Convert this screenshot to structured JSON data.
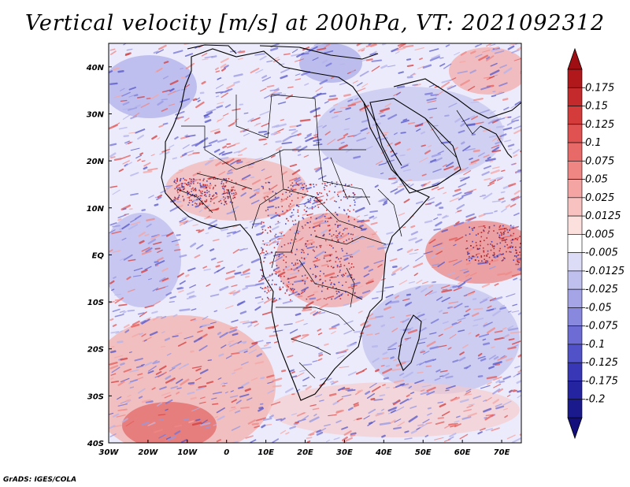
{
  "title": "Vertical velocity [m/s] at 200hPa, VT: 2021092312",
  "credit": "GrADS: IGES/COLA",
  "map": {
    "lon_range": [
      -30,
      75
    ],
    "lat_range": [
      -40,
      45
    ],
    "lon_ticks": [
      {
        "value": -30,
        "label": "30W"
      },
      {
        "value": -20,
        "label": "20W"
      },
      {
        "value": -10,
        "label": "10W"
      },
      {
        "value": 0,
        "label": "0"
      },
      {
        "value": 10,
        "label": "10E"
      },
      {
        "value": 20,
        "label": "20E"
      },
      {
        "value": 30,
        "label": "30E"
      },
      {
        "value": 40,
        "label": "40E"
      },
      {
        "value": 50,
        "label": "50E"
      },
      {
        "value": 60,
        "label": "60E"
      },
      {
        "value": 70,
        "label": "70E"
      }
    ],
    "lat_ticks": [
      {
        "value": 40,
        "label": "40N"
      },
      {
        "value": 30,
        "label": "30N"
      },
      {
        "value": 20,
        "label": "20N"
      },
      {
        "value": 10,
        "label": "10N"
      },
      {
        "value": 0,
        "label": "EQ"
      },
      {
        "value": -10,
        "label": "10S"
      },
      {
        "value": -20,
        "label": "20S"
      },
      {
        "value": -30,
        "label": "30S"
      },
      {
        "value": -40,
        "label": "40S"
      }
    ]
  },
  "colorbar": {
    "levels": [
      "0.175",
      "0.15",
      "0.125",
      "0.1",
      "0.075",
      "0.05",
      "0.025",
      "0.0125",
      "0.005",
      "-0.005",
      "-0.0125",
      "-0.025",
      "-0.05",
      "-0.075",
      "-0.1",
      "-0.125",
      "-0.175",
      "-0.2"
    ],
    "colors": [
      "#b0181c",
      "#c42a2c",
      "#d43c3c",
      "#e05252",
      "#e86a68",
      "#ef8684",
      "#f4a4a2",
      "#f8c2c0",
      "#fce0de",
      "#ffffff",
      "#dcdcf6",
      "#c0c0ee",
      "#a4a4e6",
      "#8888de",
      "#6c6cd4",
      "#5252c8",
      "#3838b6",
      "#2424a0",
      "#1a1a8c"
    ],
    "top_arrow_color": "#9e0e12",
    "bottom_arrow_color": "#120e7c"
  }
}
